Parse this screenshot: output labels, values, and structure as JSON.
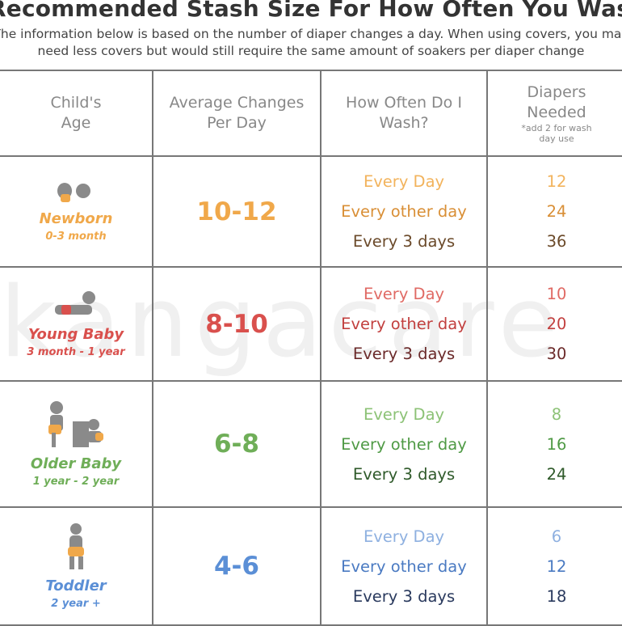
{
  "title": "Recommended Stash Size For How Often You Wash",
  "subtitle_line1": "The information below is based on the number of diaper changes a day. When using covers, you may",
  "subtitle_line2": "need less covers but would still require the same amount of soakers per diaper change",
  "watermark": "kangacare",
  "headers": {
    "age": [
      "Child's",
      "Age"
    ],
    "changes": [
      "Average Changes",
      "Per Day"
    ],
    "wash": [
      "How Often Do I",
      "Wash?"
    ],
    "needed": [
      "Diapers",
      "Needed"
    ],
    "needed_note": [
      "*add 2 for wash",
      "day use"
    ]
  },
  "rows": [
    {
      "age": "Newborn",
      "range": "0-3 month",
      "changes": "10-12",
      "colors": {
        "main": "#f0a84a",
        "light": "#f2b35c",
        "mid": "#d98f36",
        "dark": "#6b4a2a"
      },
      "wash": [
        "Every Day",
        "Every other day",
        "Every 3 days"
      ],
      "needed": [
        "12",
        "24",
        "36"
      ]
    },
    {
      "age": "Young Baby",
      "range": "3 month - 1 year",
      "changes": "8-10",
      "colors": {
        "main": "#d9504d",
        "light": "#e06a64",
        "mid": "#c2403f",
        "dark": "#6b2a2a"
      },
      "wash": [
        "Every Day",
        "Every other day",
        "Every 3 days"
      ],
      "needed": [
        "10",
        "20",
        "30"
      ]
    },
    {
      "age": "Older Baby",
      "range": "1 year - 2 year",
      "changes": "6-8",
      "colors": {
        "main": "#6fae58",
        "light": "#8cc276",
        "mid": "#4f9a45",
        "dark": "#2f5a2a"
      },
      "wash": [
        "Every Day",
        "Every other day",
        "Every 3 days"
      ],
      "needed": [
        "8",
        "16",
        "24"
      ]
    },
    {
      "age": "Toddler",
      "range": "2 year +",
      "changes": "4-6",
      "colors": {
        "main": "#5b8fd6",
        "light": "#8eb0e0",
        "mid": "#4a7ac2",
        "dark": "#2a3a5e"
      },
      "wash": [
        "Every Day",
        "Every other day",
        "Every 3 days"
      ],
      "needed": [
        "6",
        "12",
        "18"
      ]
    }
  ],
  "icons": [
    "newborn-baby-icon",
    "crawling-baby-icon",
    "baby-with-blocks-icon",
    "walking-toddler-icon"
  ]
}
